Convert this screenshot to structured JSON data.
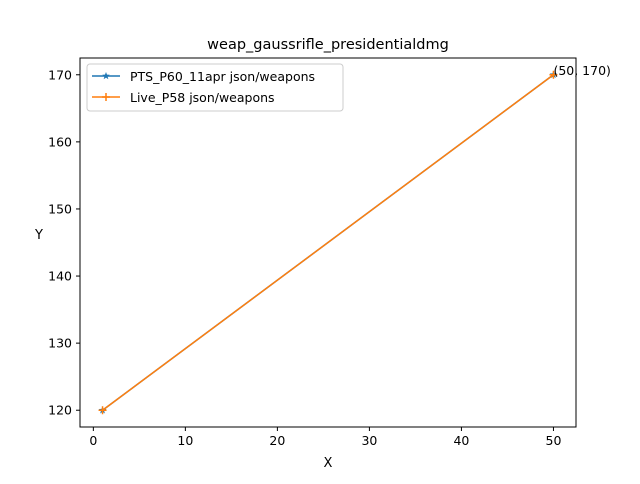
{
  "chart_data": {
    "type": "line",
    "title": "weap_gaussrifle_presidentialdmg",
    "xlabel": "X",
    "ylabel": "Y",
    "xlim": [
      -1.45,
      52.45
    ],
    "ylim": [
      117.5,
      172.5
    ],
    "xticks": [
      0,
      10,
      20,
      30,
      40,
      50
    ],
    "yticks": [
      120,
      130,
      140,
      150,
      160,
      170
    ],
    "grid": false,
    "legend_position": "top-left",
    "series": [
      {
        "name": "PTS_P60_11apr json/weapons",
        "color": "#1f77b4",
        "marker": "star",
        "x": [
          1,
          50
        ],
        "y": [
          120,
          170
        ]
      },
      {
        "name": "Live_P58 json/weapons",
        "color": "#ff7f0e",
        "marker": "plus",
        "x": [
          1,
          50
        ],
        "y": [
          120,
          170
        ]
      }
    ],
    "annotations": [
      {
        "text": "(50, 170)",
        "x": 50,
        "y": 170
      }
    ]
  }
}
